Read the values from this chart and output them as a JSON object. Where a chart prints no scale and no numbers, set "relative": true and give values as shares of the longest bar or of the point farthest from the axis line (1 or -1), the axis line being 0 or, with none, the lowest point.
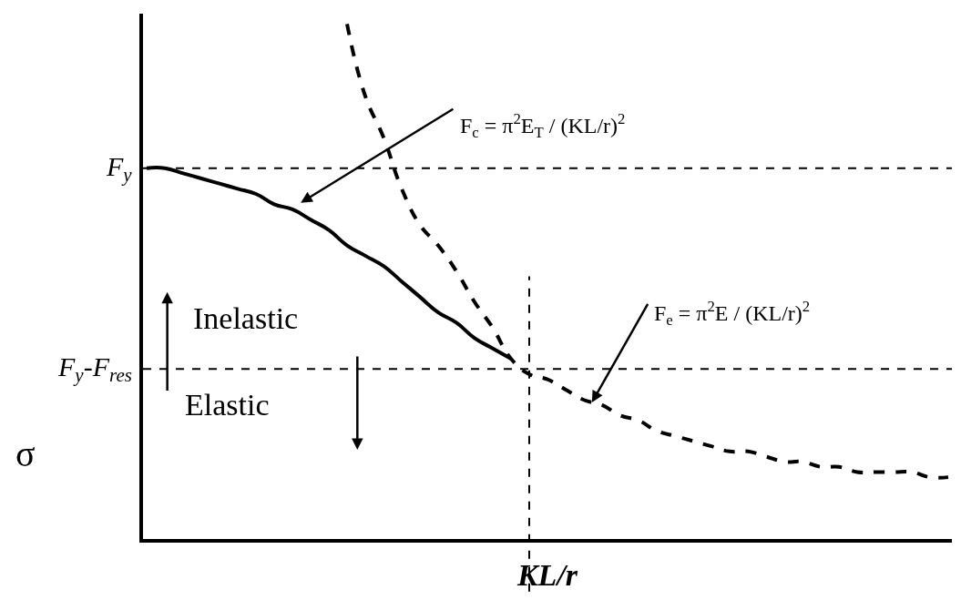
{
  "chart_data": {
    "type": "line",
    "relative": true,
    "xlabel": "KL/r",
    "ylabel": "σ",
    "tick_labels": false,
    "marker": "none",
    "categories": [
      null,
      null,
      null,
      null,
      null,
      null,
      null,
      null,
      null,
      null,
      null,
      null,
      null,
      null,
      null,
      null,
      null,
      null,
      null,
      null,
      null,
      null,
      null,
      null,
      null,
      null,
      null,
      null,
      null,
      null,
      null,
      null,
      null,
      null,
      null,
      null,
      null,
      null,
      null,
      null,
      null,
      null,
      null,
      null,
      null
    ],
    "series": [
      {
        "color": "#000000",
        "line_style": "solid",
        "values": [
          0.72,
          0.72,
          0.71,
          0.7,
          0.69,
          0.68,
          0.67,
          0.65,
          0.64,
          0.62,
          0.6,
          0.57,
          0.55,
          0.53,
          0.5,
          0.47,
          0.44,
          0.42,
          0.39,
          0.37,
          0.35,
          null,
          null,
          null,
          null,
          null,
          null,
          null,
          null,
          null,
          null,
          null,
          null,
          null,
          null,
          null,
          null,
          null,
          null,
          null,
          null,
          null,
          null,
          null,
          null
        ]
      },
      {
        "color": "#000000",
        "line_style": "dashed",
        "values": [
          null,
          null,
          null,
          null,
          null,
          null,
          null,
          null,
          null,
          null,
          null,
          1.0,
          0.86,
          0.78,
          0.68,
          0.61,
          0.57,
          0.52,
          0.46,
          0.41,
          0.35,
          0.32,
          0.31,
          0.29,
          0.27,
          0.26,
          0.24,
          0.23,
          0.21,
          0.2,
          0.19,
          0.18,
          0.17,
          0.17,
          0.16,
          0.15,
          0.15,
          0.14,
          0.14,
          0.13,
          0.13,
          0.13,
          0.13,
          0.12,
          0.12
        ]
      }
    ],
    "ref_lines": [
      {
        "axis": "y",
        "value": 0.72,
        "label": "F$_{y}$",
        "color": "#000000",
        "line_style": "dashed"
      },
      {
        "axis": "y",
        "value": 0.33,
        "label": "F$_{y}$-F$_{res}$",
        "color": "#000000",
        "line_style": "dashed"
      }
    ],
    "annotations": [
      "Inelastic",
      "Elastic",
      "F$_{c}$ = π$^{2}$E$_{T}$ / (KL/r)$^{2}$",
      "F$_{e}$ = π$^{2}$E / (KL/r)$^{2}$"
    ]
  }
}
